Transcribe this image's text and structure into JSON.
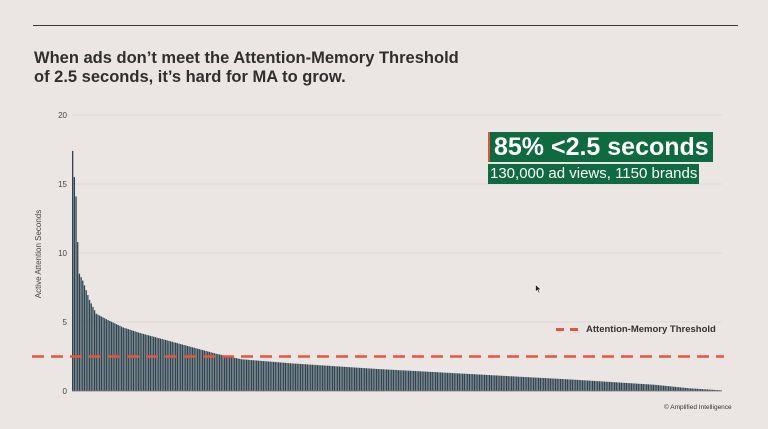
{
  "title": {
    "line1": "When ads don’t meet the Attention-Memory Threshold",
    "line2": "of 2.5 seconds, it’s hard for MA to grow."
  },
  "callout": {
    "headline": "85% <2.5 seconds",
    "subline": "130,000 ad views, 1150 brands"
  },
  "legend": {
    "threshold_label": "Attention-Memory Threshold"
  },
  "copyright": "© Amplified Intelligence",
  "colors": {
    "background": "#ebe6e3",
    "bars": "#2f4552",
    "threshold": "#e8553b",
    "callout_bg": "#0f6a3f"
  },
  "icons": {
    "cursor": "mouse-pointer-icon"
  },
  "chart_data": {
    "type": "bar",
    "ylabel": "Active Attention Seconds",
    "xlabel": "",
    "ylim": [
      0,
      20
    ],
    "yticks": [
      0,
      5,
      10,
      15,
      20
    ],
    "grid": true,
    "legend_position": "right",
    "threshold": 2.5,
    "bar_count": 385,
    "values_profile": [
      [
        0,
        17.4
      ],
      [
        1,
        15.5
      ],
      [
        2,
        14.1
      ],
      [
        3,
        10.8
      ],
      [
        4,
        8.5
      ],
      [
        6,
        8.0
      ],
      [
        10,
        6.6
      ],
      [
        14,
        5.6
      ],
      [
        20,
        5.2
      ],
      [
        30,
        4.6
      ],
      [
        40,
        4.2
      ],
      [
        55,
        3.7
      ],
      [
        70,
        3.2
      ],
      [
        85,
        2.7
      ],
      [
        100,
        2.3
      ],
      [
        130,
        2.0
      ],
      [
        180,
        1.6
      ],
      [
        240,
        1.2
      ],
      [
        300,
        0.8
      ],
      [
        345,
        0.45
      ],
      [
        365,
        0.2
      ],
      [
        384,
        0.05
      ]
    ]
  }
}
